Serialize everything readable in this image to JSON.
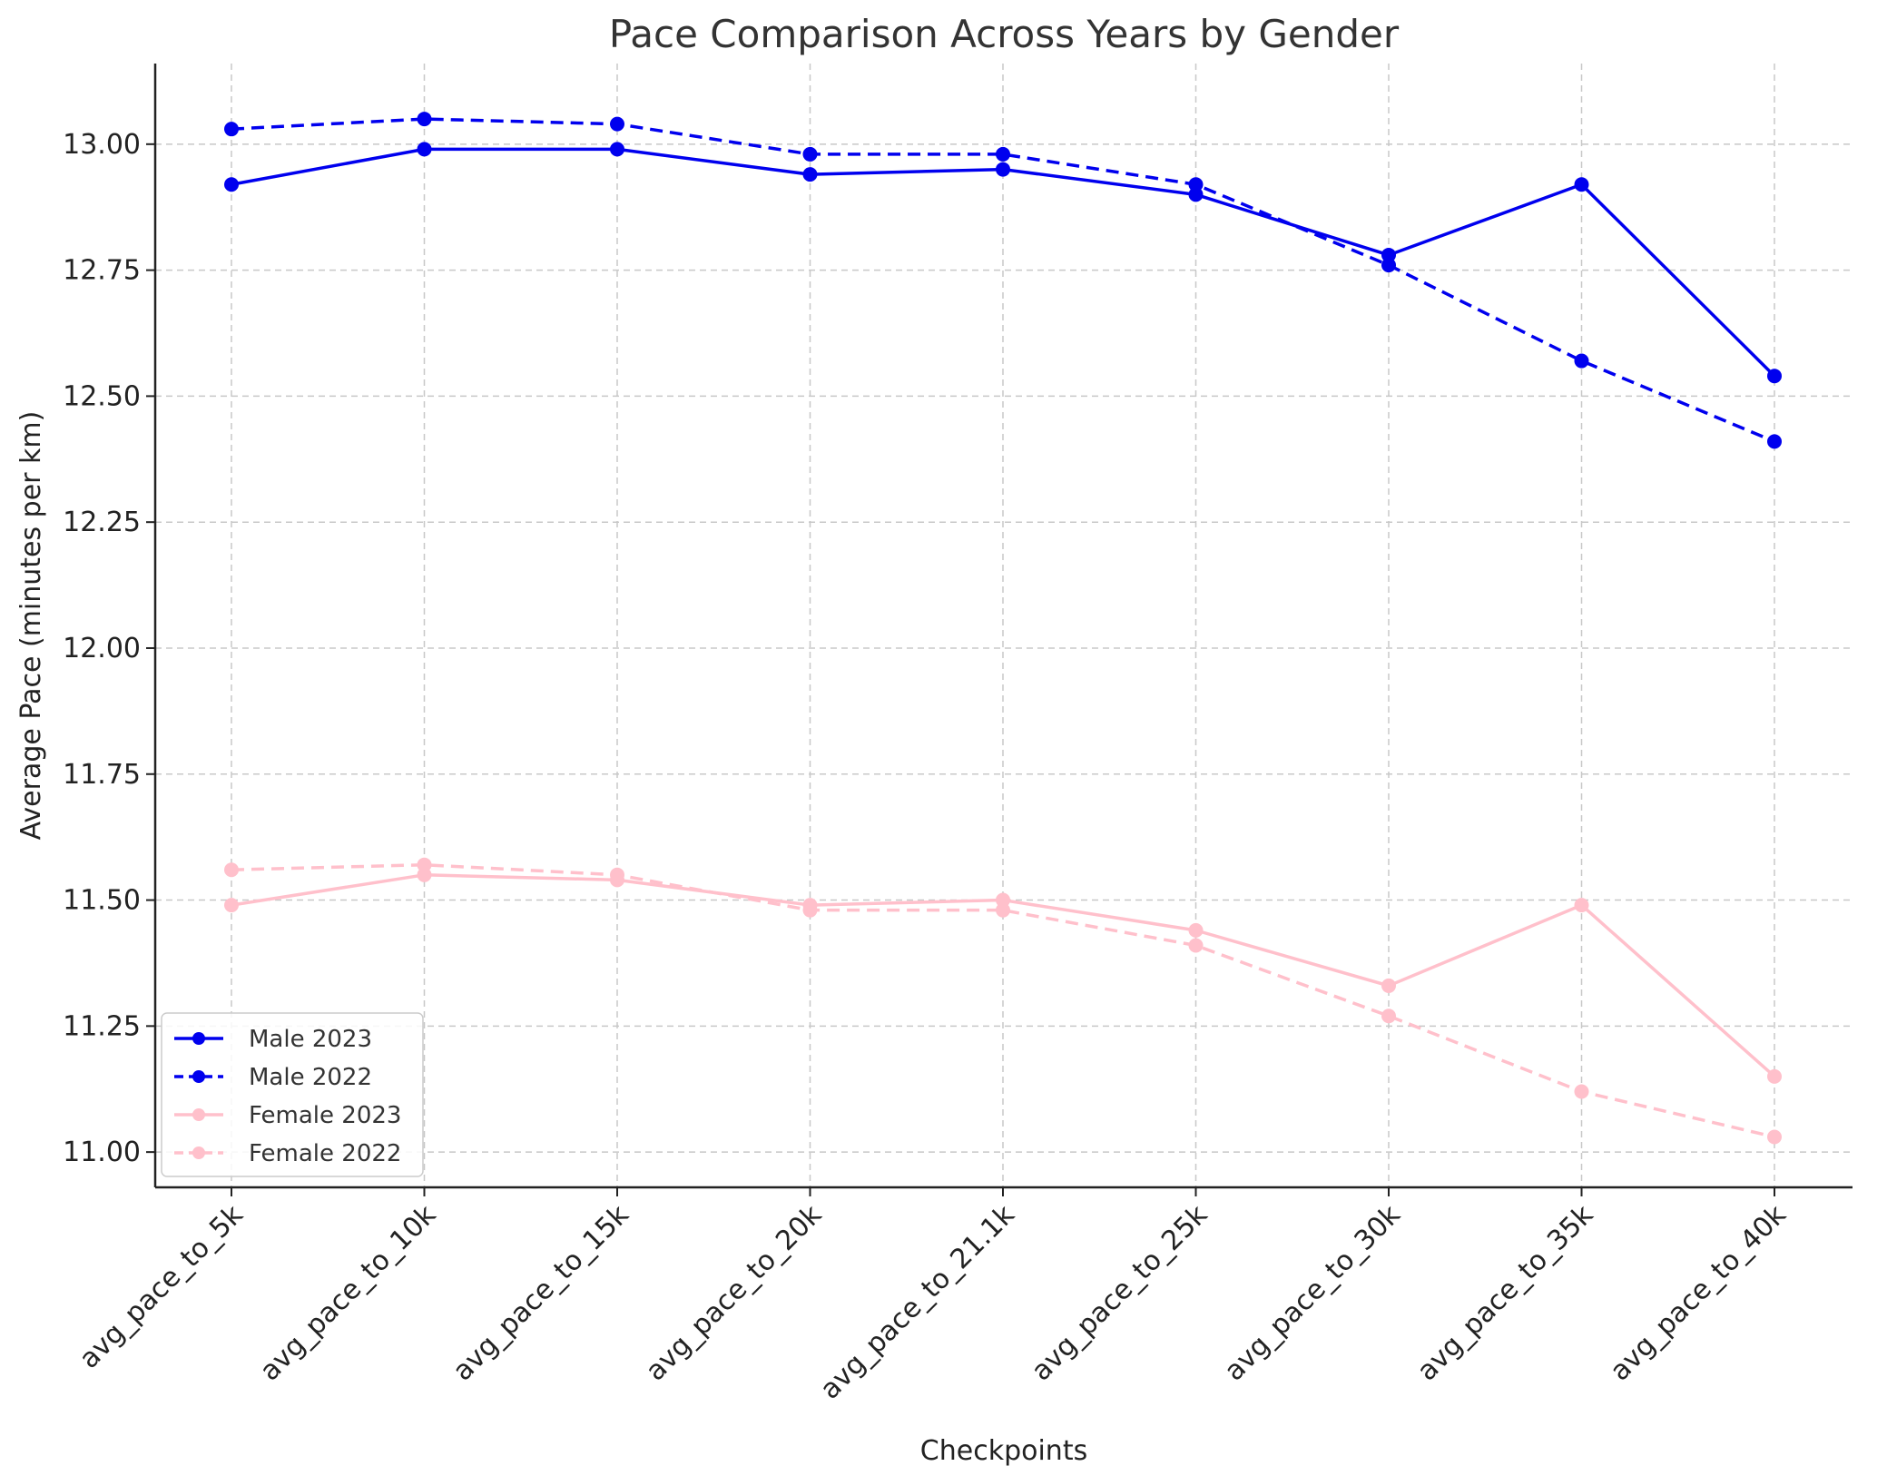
{
  "chart_data": {
    "type": "line",
    "title": "Pace Comparison Across Years by Gender",
    "xlabel": "Checkpoints",
    "ylabel": "Average Pace (minutes per km)",
    "categories": [
      "avg_pace_to_5k",
      "avg_pace_to_10k",
      "avg_pace_to_15k",
      "avg_pace_to_20k",
      "avg_pace_to_21.1k",
      "avg_pace_to_25k",
      "avg_pace_to_30k",
      "avg_pace_to_35k",
      "avg_pace_to_40k"
    ],
    "ylim": [
      10.93,
      13.16
    ],
    "yticks": [
      "11.00",
      "11.25",
      "11.50",
      "11.75",
      "12.00",
      "12.25",
      "12.50",
      "12.75",
      "13.00"
    ],
    "grid": true,
    "legend_position": "lower-left",
    "series": [
      {
        "name": "Male 2023",
        "color": "#0000ee",
        "dash": "solid",
        "values": [
          12.92,
          12.99,
          12.99,
          12.94,
          12.95,
          12.9,
          12.78,
          12.92,
          12.54
        ]
      },
      {
        "name": "Male 2022",
        "color": "#0000ee",
        "dash": "dashed",
        "values": [
          13.03,
          13.05,
          13.04,
          12.98,
          12.98,
          12.92,
          12.76,
          12.57,
          12.41
        ]
      },
      {
        "name": "Female 2023",
        "color": "#ffc0cb",
        "dash": "solid",
        "values": [
          11.49,
          11.55,
          11.54,
          11.49,
          11.5,
          11.44,
          11.33,
          11.49,
          11.15
        ]
      },
      {
        "name": "Female 2022",
        "color": "#ffc0cb",
        "dash": "dashed",
        "values": [
          11.56,
          11.57,
          11.55,
          11.48,
          11.48,
          11.41,
          11.27,
          11.12,
          11.03
        ]
      }
    ]
  }
}
